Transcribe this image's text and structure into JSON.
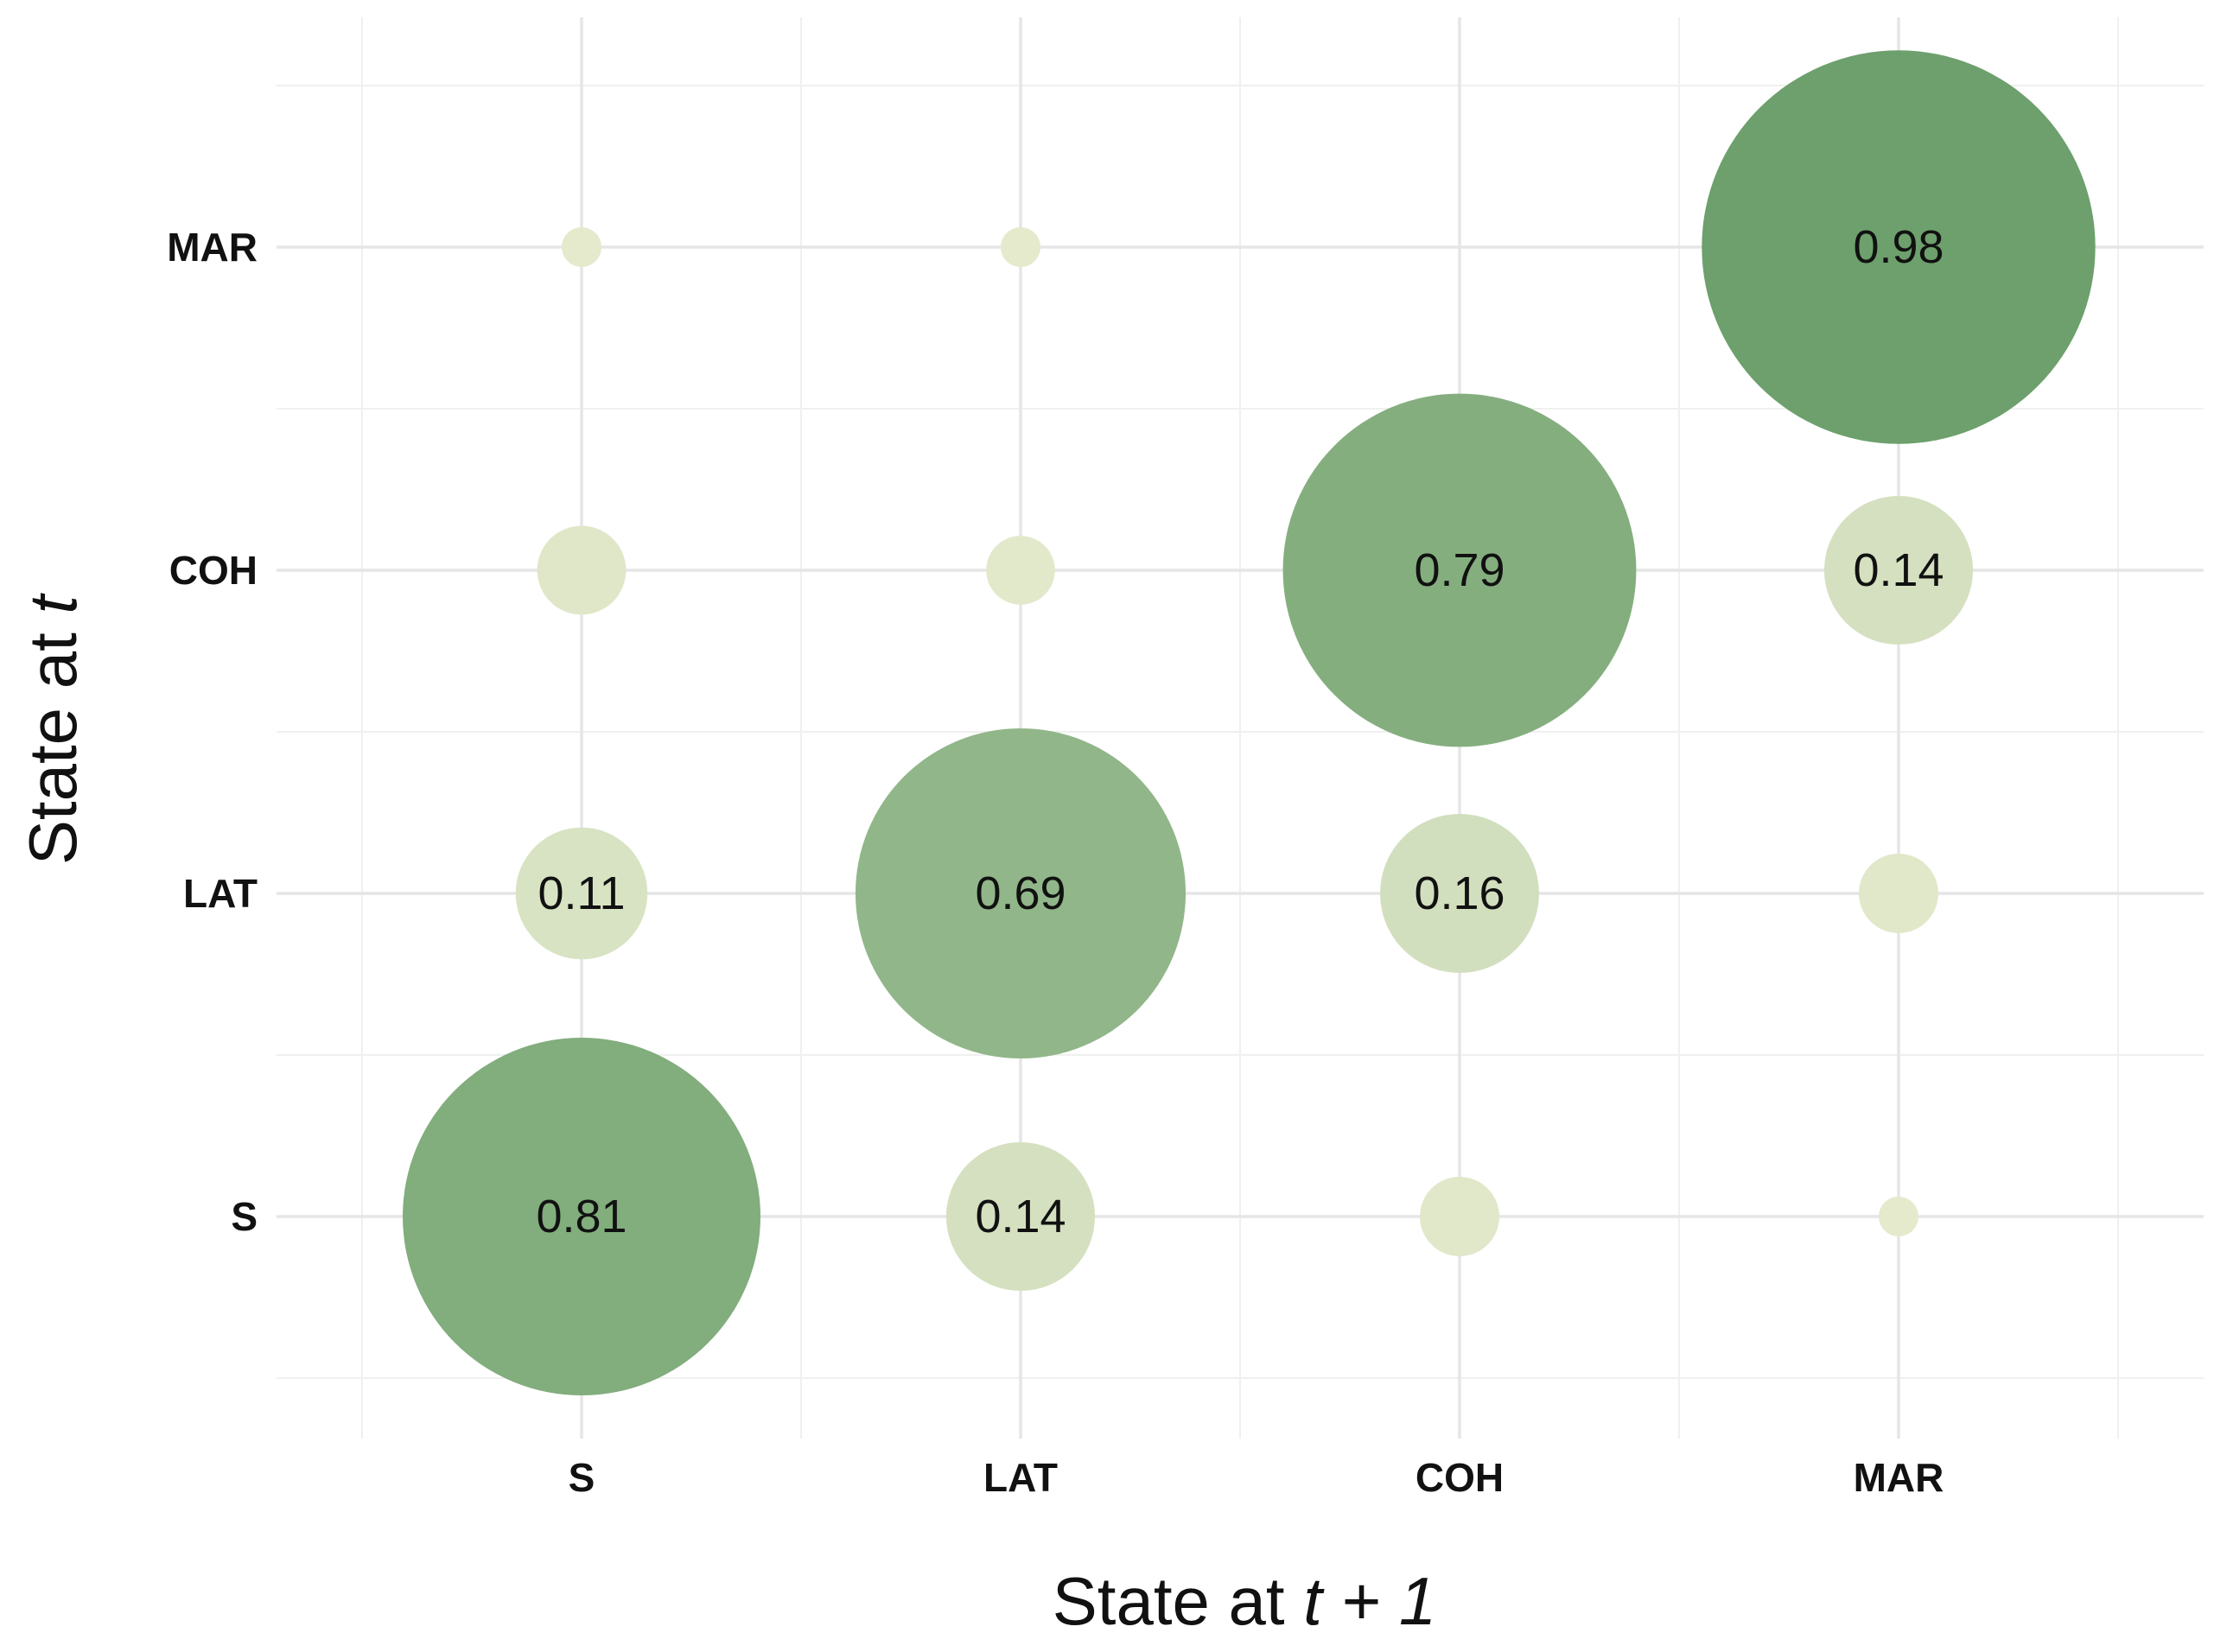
{
  "chart_data": {
    "type": "scatter",
    "subtype": "bubble-transition-matrix",
    "title": "",
    "x_axis": {
      "label_prefix": "State at ",
      "label_italic": "t + 1",
      "categories": [
        "S",
        "LAT",
        "COH",
        "MAR"
      ]
    },
    "y_axis": {
      "label_prefix": "State at ",
      "label_italic": "t",
      "categories": [
        "S",
        "LAT",
        "COH",
        "MAR"
      ]
    },
    "grid": true,
    "legend": "none",
    "colors": {
      "low": "#e6ebce",
      "high": "#6b9e6a",
      "grid_major": "#e6e6e6",
      "grid_minor": "#f0f0f0"
    },
    "cells": [
      {
        "from": "S",
        "to": "S",
        "value": 0.81,
        "label": "0.81"
      },
      {
        "from": "S",
        "to": "LAT",
        "value": 0.14,
        "label": "0.14"
      },
      {
        "from": "S",
        "to": "COH",
        "value": 0.04,
        "label": ""
      },
      {
        "from": "S",
        "to": "MAR",
        "value": 0.01,
        "label": ""
      },
      {
        "from": "LAT",
        "to": "S",
        "value": 0.11,
        "label": "0.11"
      },
      {
        "from": "LAT",
        "to": "LAT",
        "value": 0.69,
        "label": "0.69"
      },
      {
        "from": "LAT",
        "to": "COH",
        "value": 0.16,
        "label": "0.16"
      },
      {
        "from": "LAT",
        "to": "MAR",
        "value": 0.04,
        "label": ""
      },
      {
        "from": "COH",
        "to": "S",
        "value": 0.05,
        "label": ""
      },
      {
        "from": "COH",
        "to": "LAT",
        "value": 0.03,
        "label": ""
      },
      {
        "from": "COH",
        "to": "COH",
        "value": 0.79,
        "label": "0.79"
      },
      {
        "from": "COH",
        "to": "MAR",
        "value": 0.14,
        "label": "0.14"
      },
      {
        "from": "MAR",
        "to": "S",
        "value": 0.01,
        "label": ""
      },
      {
        "from": "MAR",
        "to": "LAT",
        "value": 0.01,
        "label": ""
      },
      {
        "from": "MAR",
        "to": "COH",
        "value": 0.0,
        "label": ""
      },
      {
        "from": "MAR",
        "to": "MAR",
        "value": 0.98,
        "label": "0.98"
      }
    ]
  }
}
